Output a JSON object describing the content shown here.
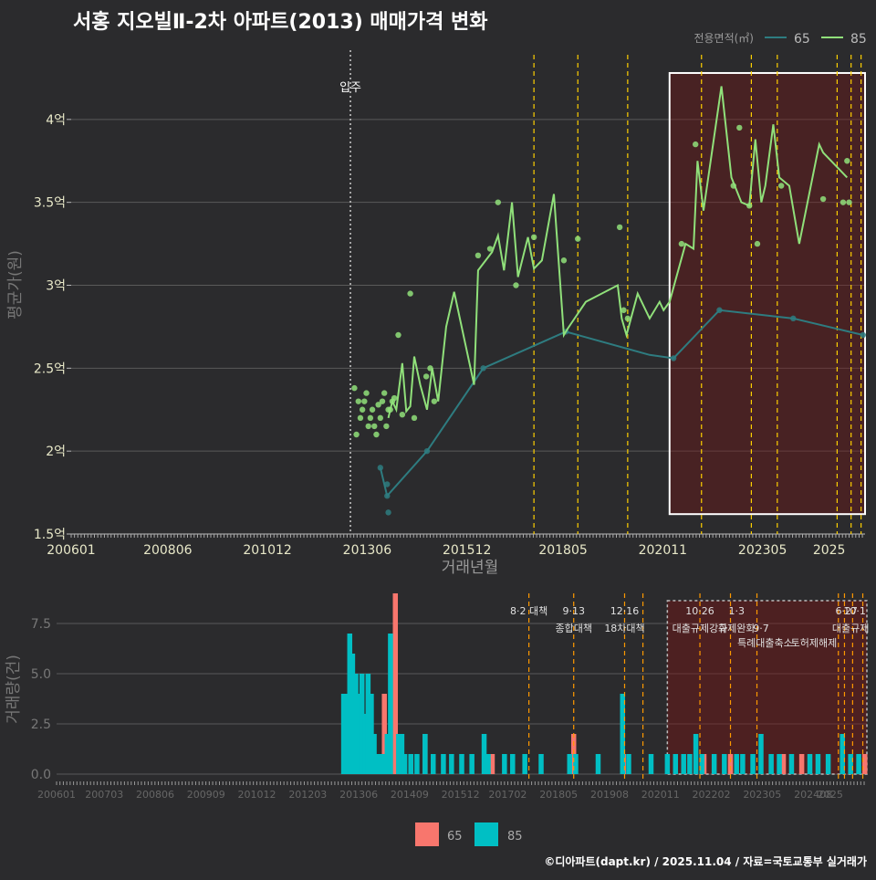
{
  "title": "서홍 지오빌Ⅱ-2차 아파트(2013) 매매가격 변화",
  "credit": "©디아파트(dapt.kr) / 2025.11.04 / 자료=국토교통부 실거래가",
  "colors": {
    "bg": "#2b2b2d",
    "s65": "#2e7c80",
    "s85": "#90e07a",
    "bar65": "#f8766d",
    "bar85": "#00bfc4",
    "grid": "#5a5a5a",
    "text": "#e8e8c8",
    "policy": "#ffd000",
    "policyB": "#ff9900"
  },
  "chart_data": [
    {
      "type": "line",
      "title": "서홍 지오빌Ⅱ-2차 아파트(2013) 매매가격 변화",
      "xlabel": "거래년월",
      "ylabel": "평균가(원)",
      "xlim": [
        2006.0,
        2025.9
      ],
      "ylim": [
        1.5,
        4.5
      ],
      "y_ticks": [
        1.5,
        2,
        2.5,
        3,
        3.5,
        4
      ],
      "y_tick_labels": [
        "1.5억",
        "2억",
        "2.5억",
        "3억",
        "3.5억",
        "4억"
      ],
      "x_tick_labels": [
        "200601",
        "200806",
        "201012",
        "201306",
        "201512",
        "201805",
        "202011",
        "202305",
        "2025"
      ],
      "x_tick_values": [
        2006.0,
        2008.42,
        2010.92,
        2013.42,
        2015.92,
        2018.33,
        2020.83,
        2023.33,
        2025.0
      ],
      "legend": {
        "title": "전용면적(㎡)",
        "items": [
          "65",
          "85"
        ],
        "placement": "top-right"
      },
      "occupancy_label": "입주",
      "occupancy_x": 2013.0,
      "policy_lines": [
        2017.6,
        2018.7,
        2019.95,
        2021.8,
        2023.05,
        2023.7,
        2025.2,
        2025.55,
        2025.8
      ],
      "highlight_range": [
        2021.0,
        2025.9
      ],
      "highlight_y": [
        1.62,
        4.28
      ],
      "series": [
        {
          "name": "65",
          "x": [
            2013.75,
            2013.92,
            2014.92,
            2016.33,
            2018.4,
            2020.5,
            2021.1,
            2022.25,
            2024.1,
            2025.85
          ],
          "y": [
            1.9,
            1.73,
            2.0,
            2.5,
            2.72,
            2.58,
            2.56,
            2.85,
            2.8,
            2.7
          ],
          "points_x": [
            2013.75,
            2013.92,
            2013.92,
            2013.95,
            2014.92,
            2016.33,
            2018.4,
            2021.1,
            2022.25,
            2024.1,
            2025.85
          ],
          "points_y": [
            1.9,
            1.73,
            1.8,
            1.63,
            2.0,
            2.5,
            2.72,
            2.56,
            2.85,
            2.8,
            2.7
          ]
        },
        {
          "name": "85",
          "x": [
            2013.95,
            2014.05,
            2014.15,
            2014.3,
            2014.4,
            2014.5,
            2014.6,
            2014.75,
            2014.92,
            2015.05,
            2015.2,
            2015.4,
            2015.6,
            2016.1,
            2016.2,
            2016.55,
            2016.7,
            2016.85,
            2017.05,
            2017.2,
            2017.45,
            2017.6,
            2017.8,
            2018.1,
            2018.35,
            2018.45,
            2018.9,
            2019.7,
            2019.8,
            2019.92,
            2020.2,
            2020.5,
            2020.75,
            2020.85,
            2021.0,
            2021.4,
            2021.6,
            2021.7,
            2021.85,
            2022.3,
            2022.55,
            2022.8,
            2023.0,
            2023.15,
            2023.3,
            2023.4,
            2023.6,
            2023.75,
            2024.0,
            2024.25,
            2024.75,
            2024.85,
            2025.25,
            2025.45
          ],
          "y": [
            2.2,
            2.3,
            2.25,
            2.53,
            2.24,
            2.27,
            2.57,
            2.4,
            2.25,
            2.5,
            2.3,
            2.75,
            2.96,
            2.4,
            3.09,
            3.2,
            3.3,
            3.09,
            3.5,
            3.05,
            3.29,
            3.1,
            3.15,
            3.55,
            2.7,
            2.74,
            2.9,
            3.0,
            2.8,
            2.7,
            2.95,
            2.8,
            2.9,
            2.85,
            2.9,
            3.25,
            3.22,
            3.75,
            3.45,
            4.2,
            3.65,
            3.5,
            3.48,
            3.88,
            3.5,
            3.6,
            3.97,
            3.65,
            3.6,
            3.25,
            3.85,
            3.8,
            3.7,
            3.65
          ],
          "points_x": [
            2013.1,
            2013.2,
            2013.3,
            2013.4,
            2013.5,
            2013.6,
            2013.7,
            2013.8,
            2013.9,
            2014.0,
            2013.15,
            2013.25,
            2013.35,
            2013.45,
            2013.55,
            2013.65,
            2013.75,
            2013.85,
            2013.95,
            2014.05,
            2014.1,
            2014.2,
            2014.3,
            2014.5,
            2014.6,
            2014.9,
            2015.0,
            2015.1,
            2016.2,
            2016.5,
            2016.7,
            2017.15,
            2017.6,
            2018.35,
            2018.7,
            2019.75,
            2019.85,
            2019.95,
            2021.3,
            2021.65,
            2022.6,
            2022.75,
            2023.0,
            2023.2,
            2023.8,
            2024.85,
            2025.35,
            2025.45,
            2025.5
          ],
          "points_y": [
            2.38,
            2.3,
            2.25,
            2.35,
            2.2,
            2.15,
            2.28,
            2.3,
            2.15,
            2.25,
            2.1,
            2.2,
            2.3,
            2.15,
            2.25,
            2.1,
            2.2,
            2.35,
            2.25,
            2.3,
            2.32,
            2.7,
            2.22,
            2.95,
            2.2,
            2.45,
            2.5,
            2.3,
            3.18,
            3.22,
            3.5,
            3.0,
            3.29,
            3.15,
            3.28,
            3.35,
            2.85,
            2.8,
            3.25,
            3.85,
            3.6,
            3.95,
            3.48,
            3.25,
            3.6,
            3.52,
            3.5,
            3.75,
            3.5
          ]
        }
      ]
    },
    {
      "type": "bar",
      "xlabel": "",
      "ylabel": "거래량(건)",
      "xlim": [
        2006.0,
        2025.9
      ],
      "ylim": [
        0,
        9
      ],
      "y_ticks": [
        0,
        2.5,
        5,
        7.5
      ],
      "y_tick_labels": [
        "0.0",
        "2.5",
        "5.0",
        "7.5"
      ],
      "x_tick_labels": [
        "200601",
        "200703",
        "200806",
        "200909",
        "201012",
        "201203",
        "201306",
        "201409",
        "201512",
        "201702",
        "201805",
        "201908",
        "202011",
        "202202",
        "202305",
        "202408",
        "2025"
      ],
      "x_tick_values": [
        2006.0,
        2007.17,
        2008.42,
        2009.67,
        2010.92,
        2012.17,
        2013.42,
        2014.67,
        2015.92,
        2017.08,
        2018.33,
        2019.58,
        2020.83,
        2022.08,
        2023.33,
        2024.58,
        2025.0
      ],
      "legend": {
        "items": [
          "65",
          "85"
        ],
        "placement": "bottom"
      },
      "policy_lines": [
        2017.6,
        2018.7,
        2019.95,
        2020.4,
        2021.8,
        2022.55,
        2023.2,
        2025.2,
        2025.35,
        2025.55,
        2025.8
      ],
      "policy_labels": [
        {
          "x": 2017.6,
          "row": 0,
          "text": "8·2 대책"
        },
        {
          "x": 2018.7,
          "row": 0,
          "text": "9·13"
        },
        {
          "x": 2018.7,
          "row": 1,
          "text": "종합대책"
        },
        {
          "x": 2019.95,
          "row": 0,
          "text": "12·16"
        },
        {
          "x": 2019.95,
          "row": 1,
          "text": "18차대책"
        },
        {
          "x": 2021.8,
          "row": 0,
          "text": "10·26"
        },
        {
          "x": 2021.8,
          "row": 1,
          "text": "대출규제강화"
        },
        {
          "x": 2022.7,
          "row": 0,
          "text": "1·3"
        },
        {
          "x": 2022.7,
          "row": 1,
          "text": "규제완화"
        },
        {
          "x": 2023.3,
          "row": 1,
          "text": "9·7"
        },
        {
          "x": 2023.4,
          "row": 2,
          "text": "특례대출축소"
        },
        {
          "x": 2024.6,
          "row": 2,
          "text": "토허제해제"
        },
        {
          "x": 2025.4,
          "row": 0,
          "text": "6·27"
        },
        {
          "x": 2025.6,
          "row": 0,
          "text": "10·1"
        },
        {
          "x": 2025.5,
          "row": 1,
          "text": "대출규제"
        }
      ],
      "highlight_range": [
        2021.0,
        2025.9
      ],
      "series": [
        {
          "name": "65",
          "x": [
            2014.32,
            2014.05,
            2015.05,
            2016.7,
            2018.7,
            2019.92,
            2021.9,
            2022.55,
            2023.85,
            2024.3,
            2025.3,
            2025.85
          ],
          "y": [
            9,
            4,
            2,
            1,
            2,
            1,
            1,
            1,
            1,
            1,
            1,
            1
          ]
        },
        {
          "name": "85",
          "x": [
            2013.05,
            2013.12,
            2013.2,
            2013.27,
            2013.35,
            2013.42,
            2013.5,
            2013.58,
            2013.65,
            2013.73,
            2013.8,
            2013.88,
            2013.95,
            2014.05,
            2014.12,
            2014.2,
            2014.4,
            2014.48,
            2014.55,
            2014.7,
            2014.85,
            2015.05,
            2015.25,
            2015.5,
            2015.7,
            2015.95,
            2016.2,
            2016.5,
            2016.6,
            2017.0,
            2017.2,
            2017.5,
            2017.9,
            2018.6,
            2018.75,
            2019.3,
            2019.9,
            2020.05,
            2020.6,
            2021.0,
            2021.2,
            2021.4,
            2021.55,
            2021.7,
            2021.85,
            2022.15,
            2022.4,
            2022.7,
            2022.85,
            2023.1,
            2023.3,
            2023.55,
            2023.75,
            2024.05,
            2024.5,
            2024.7,
            2024.95,
            2025.3,
            2025.5,
            2025.7
          ],
          "y": [
            4,
            4,
            7,
            6,
            5,
            4,
            5,
            3,
            5,
            4,
            2,
            1,
            1,
            1,
            2,
            7,
            2,
            2,
            1,
            1,
            1,
            2,
            1,
            1,
            1,
            1,
            1,
            2,
            1,
            1,
            1,
            1,
            1,
            1,
            1,
            1,
            4,
            1,
            1,
            1,
            1,
            1,
            1,
            2,
            1,
            1,
            1,
            1,
            1,
            1,
            2,
            1,
            1,
            1,
            1,
            1,
            1,
            2,
            1,
            1
          ]
        }
      ]
    }
  ]
}
